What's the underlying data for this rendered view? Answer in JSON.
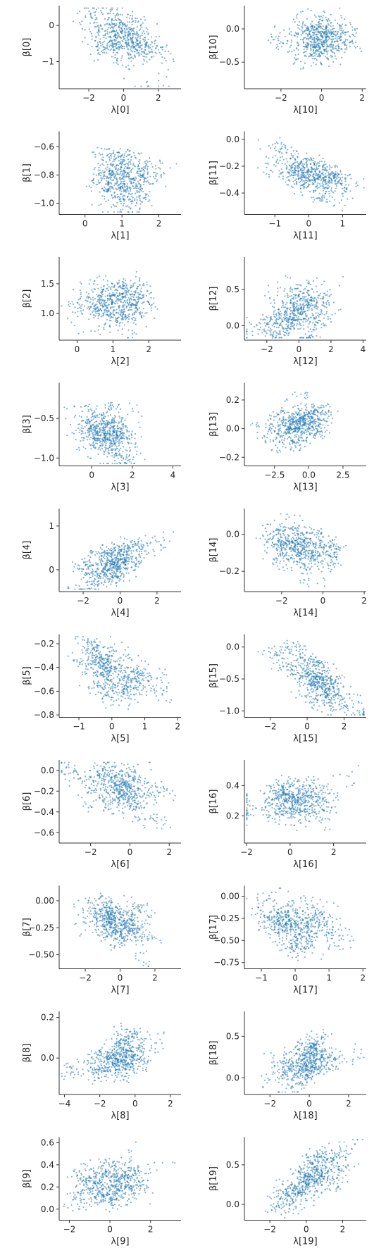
{
  "figure": {
    "layout": "10 rows x 2 columns",
    "marker_color": "#1f77b4",
    "marker_style": "small dots, semi-transparent"
  },
  "chart_data": [
    {
      "type": "scatter",
      "xlabel": "λ[0]",
      "ylabel": "β[0]",
      "xticks": [
        -2,
        0,
        2
      ],
      "yticks": [
        0,
        -1
      ],
      "xlim": [
        -3.7,
        3.3
      ],
      "ylim": [
        -1.75,
        0.55
      ],
      "x_center": 0.0,
      "y_center": -0.35,
      "x_spread": 1.2,
      "y_spread": 0.4,
      "corr": -0.5
    },
    {
      "type": "scatter",
      "xlabel": "λ[10]",
      "ylabel": "β[10]",
      "xticks": [
        -2,
        0,
        2
      ],
      "yticks": [
        0.0,
        -0.5
      ],
      "xlim": [
        -3.8,
        2.2
      ],
      "ylim": [
        -0.9,
        0.35
      ],
      "x_center": 0.0,
      "y_center": -0.2,
      "x_spread": 0.9,
      "y_spread": 0.2,
      "corr": -0.3
    },
    {
      "type": "scatter",
      "xlabel": "λ[1]",
      "ylabel": "β[1]",
      "xticks": [
        0,
        1,
        2
      ],
      "yticks": [
        -0.6,
        -0.8,
        -1.0
      ],
      "xlim": [
        -0.7,
        2.6
      ],
      "ylim": [
        -1.08,
        -0.49
      ],
      "x_center": 0.9,
      "y_center": -0.82,
      "x_spread": 0.5,
      "y_spread": 0.1,
      "corr": 0.0
    },
    {
      "type": "scatter",
      "xlabel": "λ[11]",
      "ylabel": "β[11]",
      "xticks": [
        -1,
        0,
        1
      ],
      "yticks": [
        0.0,
        -0.2,
        -0.4
      ],
      "xlim": [
        -1.9,
        1.7
      ],
      "ylim": [
        -0.56,
        0.06
      ],
      "x_center": 0.1,
      "y_center": -0.27,
      "x_spread": 0.6,
      "y_spread": 0.1,
      "corr": -0.4
    },
    {
      "type": "scatter",
      "xlabel": "λ[2]",
      "ylabel": "β[2]",
      "xticks": [
        0,
        1,
        2
      ],
      "yticks": [
        1.5,
        1.0
      ],
      "xlim": [
        -0.5,
        2.9
      ],
      "ylim": [
        0.55,
        1.95
      ],
      "x_center": 1.0,
      "y_center": 1.15,
      "x_spread": 0.55,
      "y_spread": 0.25,
      "corr": 0.2
    },
    {
      "type": "scatter",
      "xlabel": "λ[12]",
      "ylabel": "β[12]",
      "xticks": [
        -2,
        0,
        2,
        4
      ],
      "yticks": [
        0.5,
        0.0
      ],
      "xlim": [
        -3.4,
        4.2
      ],
      "ylim": [
        -0.2,
        0.95
      ],
      "x_center": -0.2,
      "y_center": 0.18,
      "x_spread": 1.1,
      "y_spread": 0.2,
      "corr": 0.5
    },
    {
      "type": "scatter",
      "xlabel": "λ[3]",
      "ylabel": "β[3]",
      "xticks": [
        0,
        2,
        4
      ],
      "yticks": [
        -0.5,
        -1.0
      ],
      "xlim": [
        -1.6,
        4.4
      ],
      "ylim": [
        -1.1,
        -0.05
      ],
      "x_center": 0.6,
      "y_center": -0.72,
      "x_spread": 0.8,
      "y_spread": 0.18,
      "corr": -0.3
    },
    {
      "type": "scatter",
      "xlabel": "λ[13]",
      "ylabel": "β[13]",
      "xticks": [
        -2.5,
        0.0,
        2.5
      ],
      "yticks": [
        0.2,
        0.0,
        -0.2
      ],
      "xlim": [
        -4.7,
        4.2
      ],
      "ylim": [
        -0.26,
        0.32
      ],
      "x_center": -1.0,
      "y_center": 0.01,
      "x_spread": 1.4,
      "y_spread": 0.07,
      "corr": 0.5
    },
    {
      "type": "scatter",
      "xlabel": "λ[4]",
      "ylabel": "β[4]",
      "xticks": [
        -2,
        0,
        2
      ],
      "yticks": [
        1,
        0
      ],
      "xlim": [
        -3.3,
        3.3
      ],
      "ylim": [
        -0.5,
        1.4
      ],
      "x_center": -0.3,
      "y_center": 0.15,
      "x_spread": 1.0,
      "y_spread": 0.25,
      "corr": 0.5
    },
    {
      "type": "scatter",
      "xlabel": "λ[14]",
      "ylabel": "β[14]",
      "xticks": [
        -2,
        0,
        2
      ],
      "yticks": [
        0.0,
        -0.2
      ],
      "xlim": [
        -3.8,
        2.1
      ],
      "ylim": [
        -0.31,
        0.14
      ],
      "x_center": -1.0,
      "y_center": -0.07,
      "x_spread": 1.0,
      "y_spread": 0.07,
      "corr": -0.4
    },
    {
      "type": "scatter",
      "xlabel": "λ[5]",
      "ylabel": "β[5]",
      "xticks": [
        -1,
        0,
        1,
        2
      ],
      "yticks": [
        -0.2,
        -0.4,
        -0.6,
        -0.8
      ],
      "xlim": [
        -1.6,
        2.1
      ],
      "ylim": [
        -0.82,
        -0.12
      ],
      "x_center": 0.1,
      "y_center": -0.43,
      "x_spread": 0.6,
      "y_spread": 0.12,
      "corr": -0.4
    },
    {
      "type": "scatter",
      "xlabel": "λ[15]",
      "ylabel": "β[15]",
      "xticks": [
        -2,
        0,
        2
      ],
      "yticks": [
        0.0,
        -0.5,
        -1.0
      ],
      "xlim": [
        -3.4,
        3.2
      ],
      "ylim": [
        -1.1,
        0.2
      ],
      "x_center": 0.3,
      "y_center": -0.45,
      "x_spread": 1.0,
      "y_spread": 0.22,
      "corr": -0.5
    },
    {
      "type": "scatter",
      "xlabel": "λ[6]",
      "ylabel": "β[6]",
      "xticks": [
        -2,
        0,
        2
      ],
      "yticks": [
        0.0,
        -0.2,
        -0.4,
        -0.6
      ],
      "xlim": [
        -3.6,
        2.6
      ],
      "ylim": [
        -0.7,
        0.1
      ],
      "x_center": -0.4,
      "y_center": -0.2,
      "x_spread": 0.9,
      "y_spread": 0.12,
      "corr": -0.4
    },
    {
      "type": "scatter",
      "xlabel": "λ[16]",
      "ylabel": "β[16]",
      "xticks": [
        -2,
        0,
        2
      ],
      "yticks": [
        0.4,
        0.2
      ],
      "xlim": [
        -2.1,
        3.5
      ],
      "ylim": [
        0.02,
        0.57
      ],
      "x_center": 0.3,
      "y_center": 0.3,
      "x_spread": 0.9,
      "y_spread": 0.09,
      "corr": 0.2
    },
    {
      "type": "scatter",
      "xlabel": "λ[7]",
      "ylabel": "β[7]",
      "xticks": [
        -2,
        0,
        2
      ],
      "yticks": [
        0.0,
        -0.25,
        -0.5
      ],
      "xlim": [
        -3.5,
        3.5
      ],
      "ylim": [
        -0.63,
        0.14
      ],
      "x_center": -0.1,
      "y_center": -0.2,
      "x_spread": 0.9,
      "y_spread": 0.12,
      "corr": -0.3
    },
    {
      "type": "scatter",
      "xlabel": "λ[17]",
      "ylabel": "β[17]",
      "xticks": [
        -1,
        0,
        1,
        2
      ],
      "yticks": [
        0.0,
        -0.25,
        -0.5,
        -0.75
      ],
      "xlim": [
        -1.5,
        2.1
      ],
      "ylim": [
        -0.82,
        0.12
      ],
      "x_center": 0.1,
      "y_center": -0.35,
      "x_spread": 0.6,
      "y_spread": 0.14,
      "corr": -0.3
    },
    {
      "type": "scatter",
      "xlabel": "λ[8]",
      "ylabel": "β[8]",
      "xticks": [
        -4,
        -2,
        0,
        2
      ],
      "yticks": [
        0.2,
        0.0
      ],
      "xlim": [
        -4.3,
        2.6
      ],
      "ylim": [
        -0.18,
        0.23
      ],
      "x_center": -1.0,
      "y_center": 0.0,
      "x_spread": 1.1,
      "y_spread": 0.06,
      "corr": 0.4
    },
    {
      "type": "scatter",
      "xlabel": "λ[18]",
      "ylabel": "β[18]",
      "xticks": [
        -2,
        0,
        2
      ],
      "yticks": [
        0.5,
        0.0
      ],
      "xlim": [
        -3.3,
        2.9
      ],
      "ylim": [
        -0.2,
        0.8
      ],
      "x_center": 0.1,
      "y_center": 0.2,
      "x_spread": 0.9,
      "y_spread": 0.17,
      "corr": 0.5
    },
    {
      "type": "scatter",
      "xlabel": "λ[9]",
      "ylabel": "β[9]",
      "xticks": [
        -2,
        0,
        2
      ],
      "yticks": [
        0.6,
        0.4,
        0.2,
        0.0
      ],
      "xlim": [
        -2.5,
        3.5
      ],
      "ylim": [
        -0.1,
        0.65
      ],
      "x_center": 0.3,
      "y_center": 0.24,
      "x_spread": 0.9,
      "y_spread": 0.12,
      "corr": 0.3
    },
    {
      "type": "scatter",
      "xlabel": "λ[19]",
      "ylabel": "β[19]",
      "xticks": [
        -2,
        0,
        2
      ],
      "yticks": [
        0.5,
        0.0
      ],
      "xlim": [
        -3.4,
        3.3
      ],
      "ylim": [
        -0.2,
        0.85
      ],
      "x_center": 0.2,
      "y_center": 0.3,
      "x_spread": 1.0,
      "y_spread": 0.2,
      "corr": 0.6
    }
  ]
}
